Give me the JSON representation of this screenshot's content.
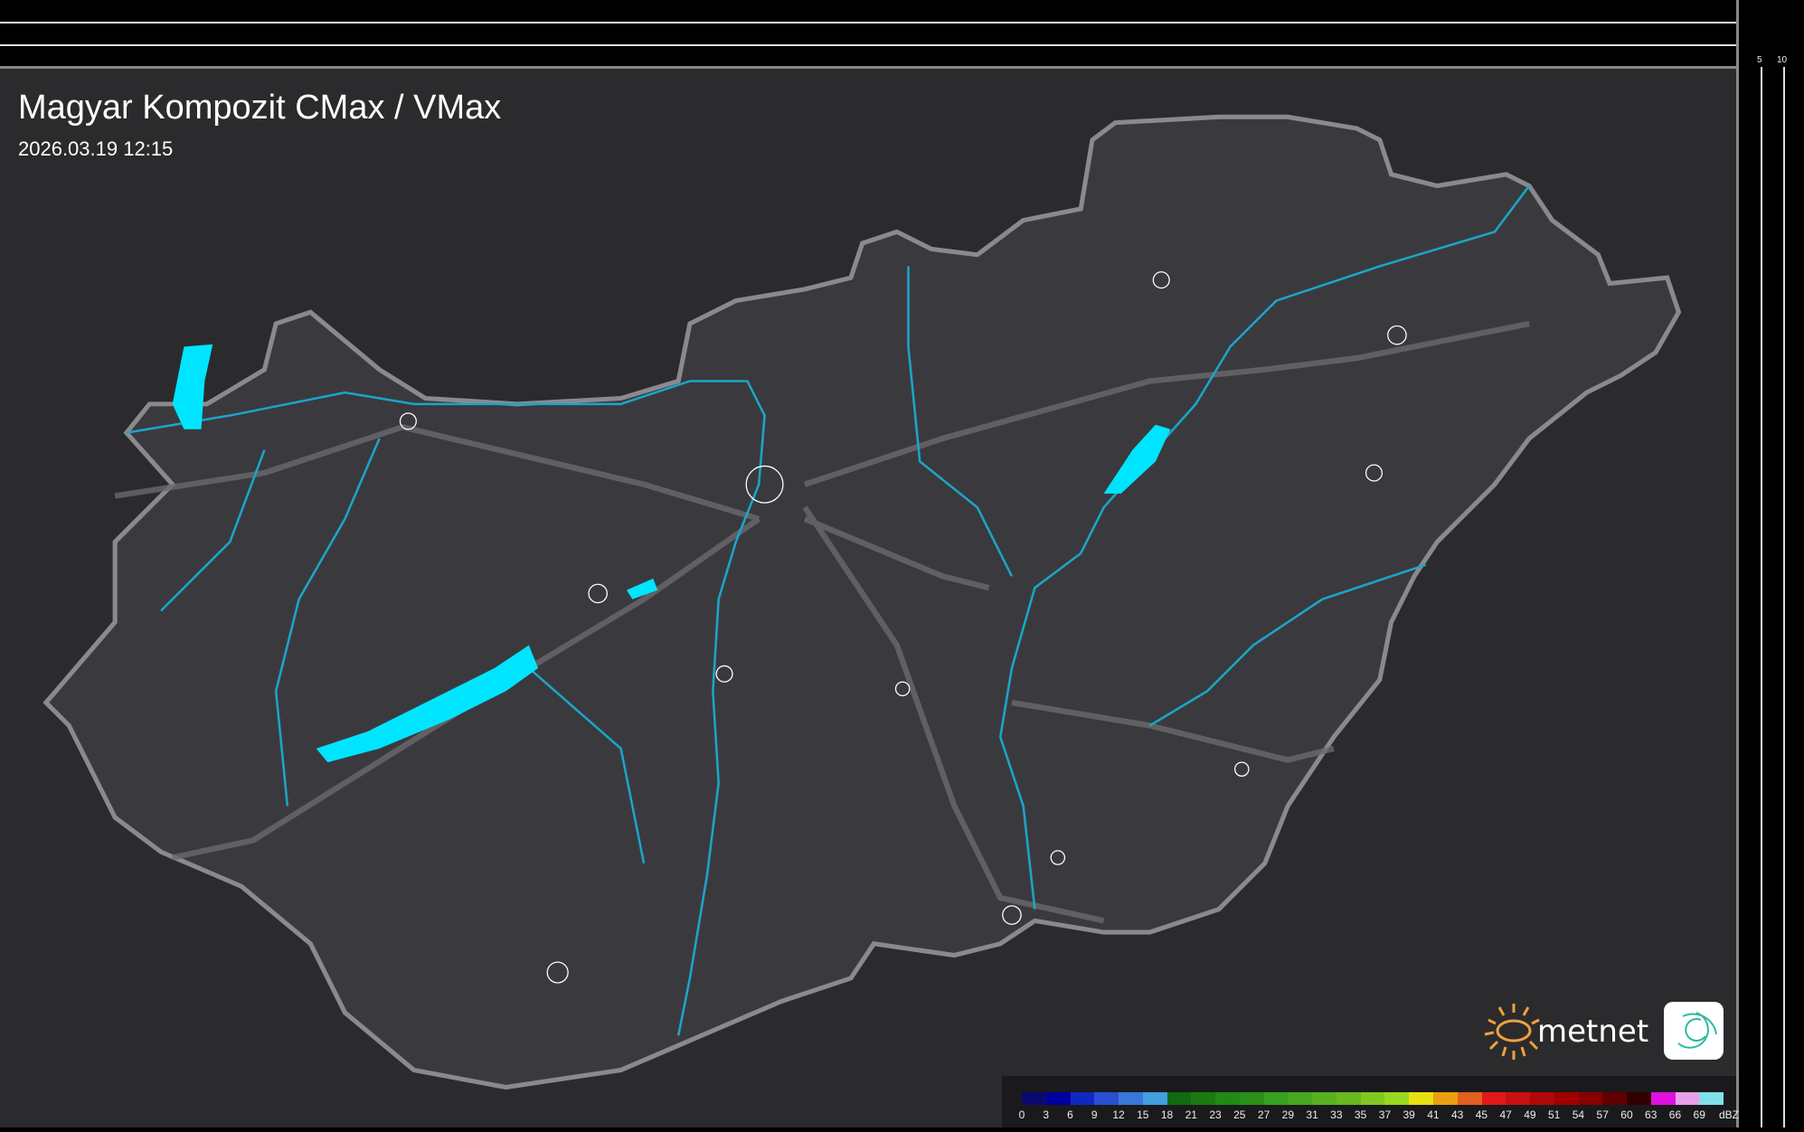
{
  "title": "Magyar Kompozit CMax / VMax",
  "timestamp": "2026.03.19 12:15",
  "top_axis": {
    "labels": [
      "10",
      "5"
    ]
  },
  "right_axis": {
    "labels": [
      "5",
      "10"
    ]
  },
  "legend": {
    "unit": "dBZ",
    "labels": [
      "0",
      "3",
      "6",
      "9",
      "12",
      "15",
      "18",
      "21",
      "23",
      "25",
      "27",
      "29",
      "31",
      "33",
      "35",
      "37",
      "39",
      "41",
      "43",
      "45",
      "47",
      "49",
      "51",
      "54",
      "57",
      "60",
      "63",
      "66",
      "69"
    ],
    "colors": [
      "#0a0a6e",
      "#0000a0",
      "#1028c0",
      "#2850d0",
      "#3878d8",
      "#40a0e0",
      "#106a10",
      "#1a7a10",
      "#208a15",
      "#2a9018",
      "#38a020",
      "#48a820",
      "#58b020",
      "#68b820",
      "#80c820",
      "#98d820",
      "#e8e010",
      "#e8a010",
      "#e06020",
      "#e01818",
      "#c81010",
      "#b00808",
      "#a00000",
      "#880000",
      "#600000",
      "#300000",
      "#e010e0",
      "#e8a0e8",
      "#80e0e8"
    ]
  },
  "logo": {
    "text": "metnet"
  },
  "colors": {
    "water": "#00e5ff",
    "river": "#1aa6c8",
    "border": "#8a8a8e",
    "road": "#6a6a6e",
    "land": "#3a3a3e"
  }
}
